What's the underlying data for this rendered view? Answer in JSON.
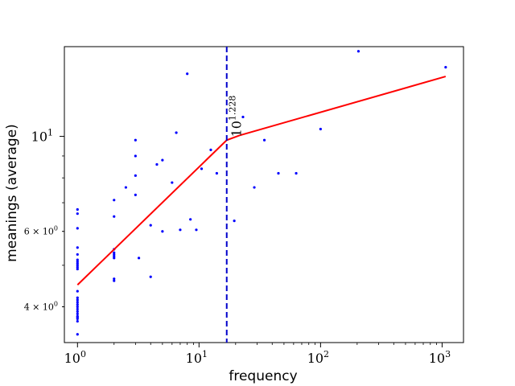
{
  "chart_data": {
    "type": "scatter",
    "title": "",
    "xlabel": "frequency",
    "ylabel": "meanings (average)",
    "xscale": "log",
    "yscale": "log",
    "xlim": [
      0.78,
      1500
    ],
    "ylim": [
      3.3,
      16.2
    ],
    "x_ticks": [
      {
        "value": 1,
        "base": "10",
        "exp": "0"
      },
      {
        "value": 10,
        "base": "10",
        "exp": "1"
      },
      {
        "value": 100,
        "base": "10",
        "exp": "2"
      },
      {
        "value": 1000,
        "base": "10",
        "exp": "3"
      }
    ],
    "y_ticks": [
      {
        "value": 10,
        "base": "10",
        "exp": "1",
        "prefix": "",
        "major": true
      },
      {
        "value": 6,
        "base": "10",
        "exp": "0",
        "prefix": "6 × ",
        "major": false
      },
      {
        "value": 4,
        "base": "10",
        "exp": "0",
        "prefix": "4 × ",
        "major": false
      }
    ],
    "grid": false,
    "points": {
      "color": "#0000ff",
      "x": [
        1,
        1,
        1,
        1,
        1,
        1,
        1,
        1,
        1,
        1,
        1,
        1,
        1,
        1,
        1,
        1,
        1,
        1,
        1,
        1,
        1,
        1,
        1,
        1,
        1,
        2,
        2,
        2,
        2,
        2,
        2,
        2,
        2,
        2,
        2.5,
        3,
        3,
        3,
        3,
        3.2,
        4,
        4,
        4.5,
        5,
        5,
        6,
        6.5,
        7,
        8,
        8.5,
        9.5,
        10.5,
        12.5,
        14,
        19.5,
        23,
        28.5,
        34.5,
        45,
        63,
        100,
        205,
        1070
      ],
      "y": [
        3.45,
        3.7,
        3.75,
        3.78,
        3.8,
        3.85,
        3.95,
        4.0,
        4.05,
        4.1,
        4.15,
        4.2,
        4.35,
        4.9,
        4.95,
        5.0,
        5.05,
        5.1,
        5.15,
        5.3,
        5.5,
        6.1,
        6.6,
        6.75,
        3.9,
        4.6,
        4.65,
        5.2,
        5.25,
        5.3,
        5.35,
        5.45,
        6.5,
        7.1,
        7.6,
        7.3,
        8.1,
        9.0,
        9.8,
        5.2,
        4.7,
        6.2,
        8.6,
        6.0,
        8.8,
        7.8,
        10.2,
        6.05,
        14.0,
        6.4,
        6.05,
        8.4,
        9.3,
        8.2,
        6.35,
        11.1,
        7.6,
        9.8,
        8.2,
        8.2,
        10.4,
        15.8,
        14.5
      ],
      "marker_size": 1.6
    },
    "fit_line": {
      "color": "#ff0000",
      "x": [
        1,
        16.9,
        21.5,
        1070
      ],
      "y": [
        4.5,
        9.8,
        10.05,
        13.8
      ]
    },
    "vline": {
      "color": "#0000cc",
      "x": 16.9,
      "style": "dashed"
    },
    "annotation": {
      "base": "10",
      "exp": "1.228",
      "rotation": -90,
      "x": 16.9,
      "y": 10.05
    }
  }
}
